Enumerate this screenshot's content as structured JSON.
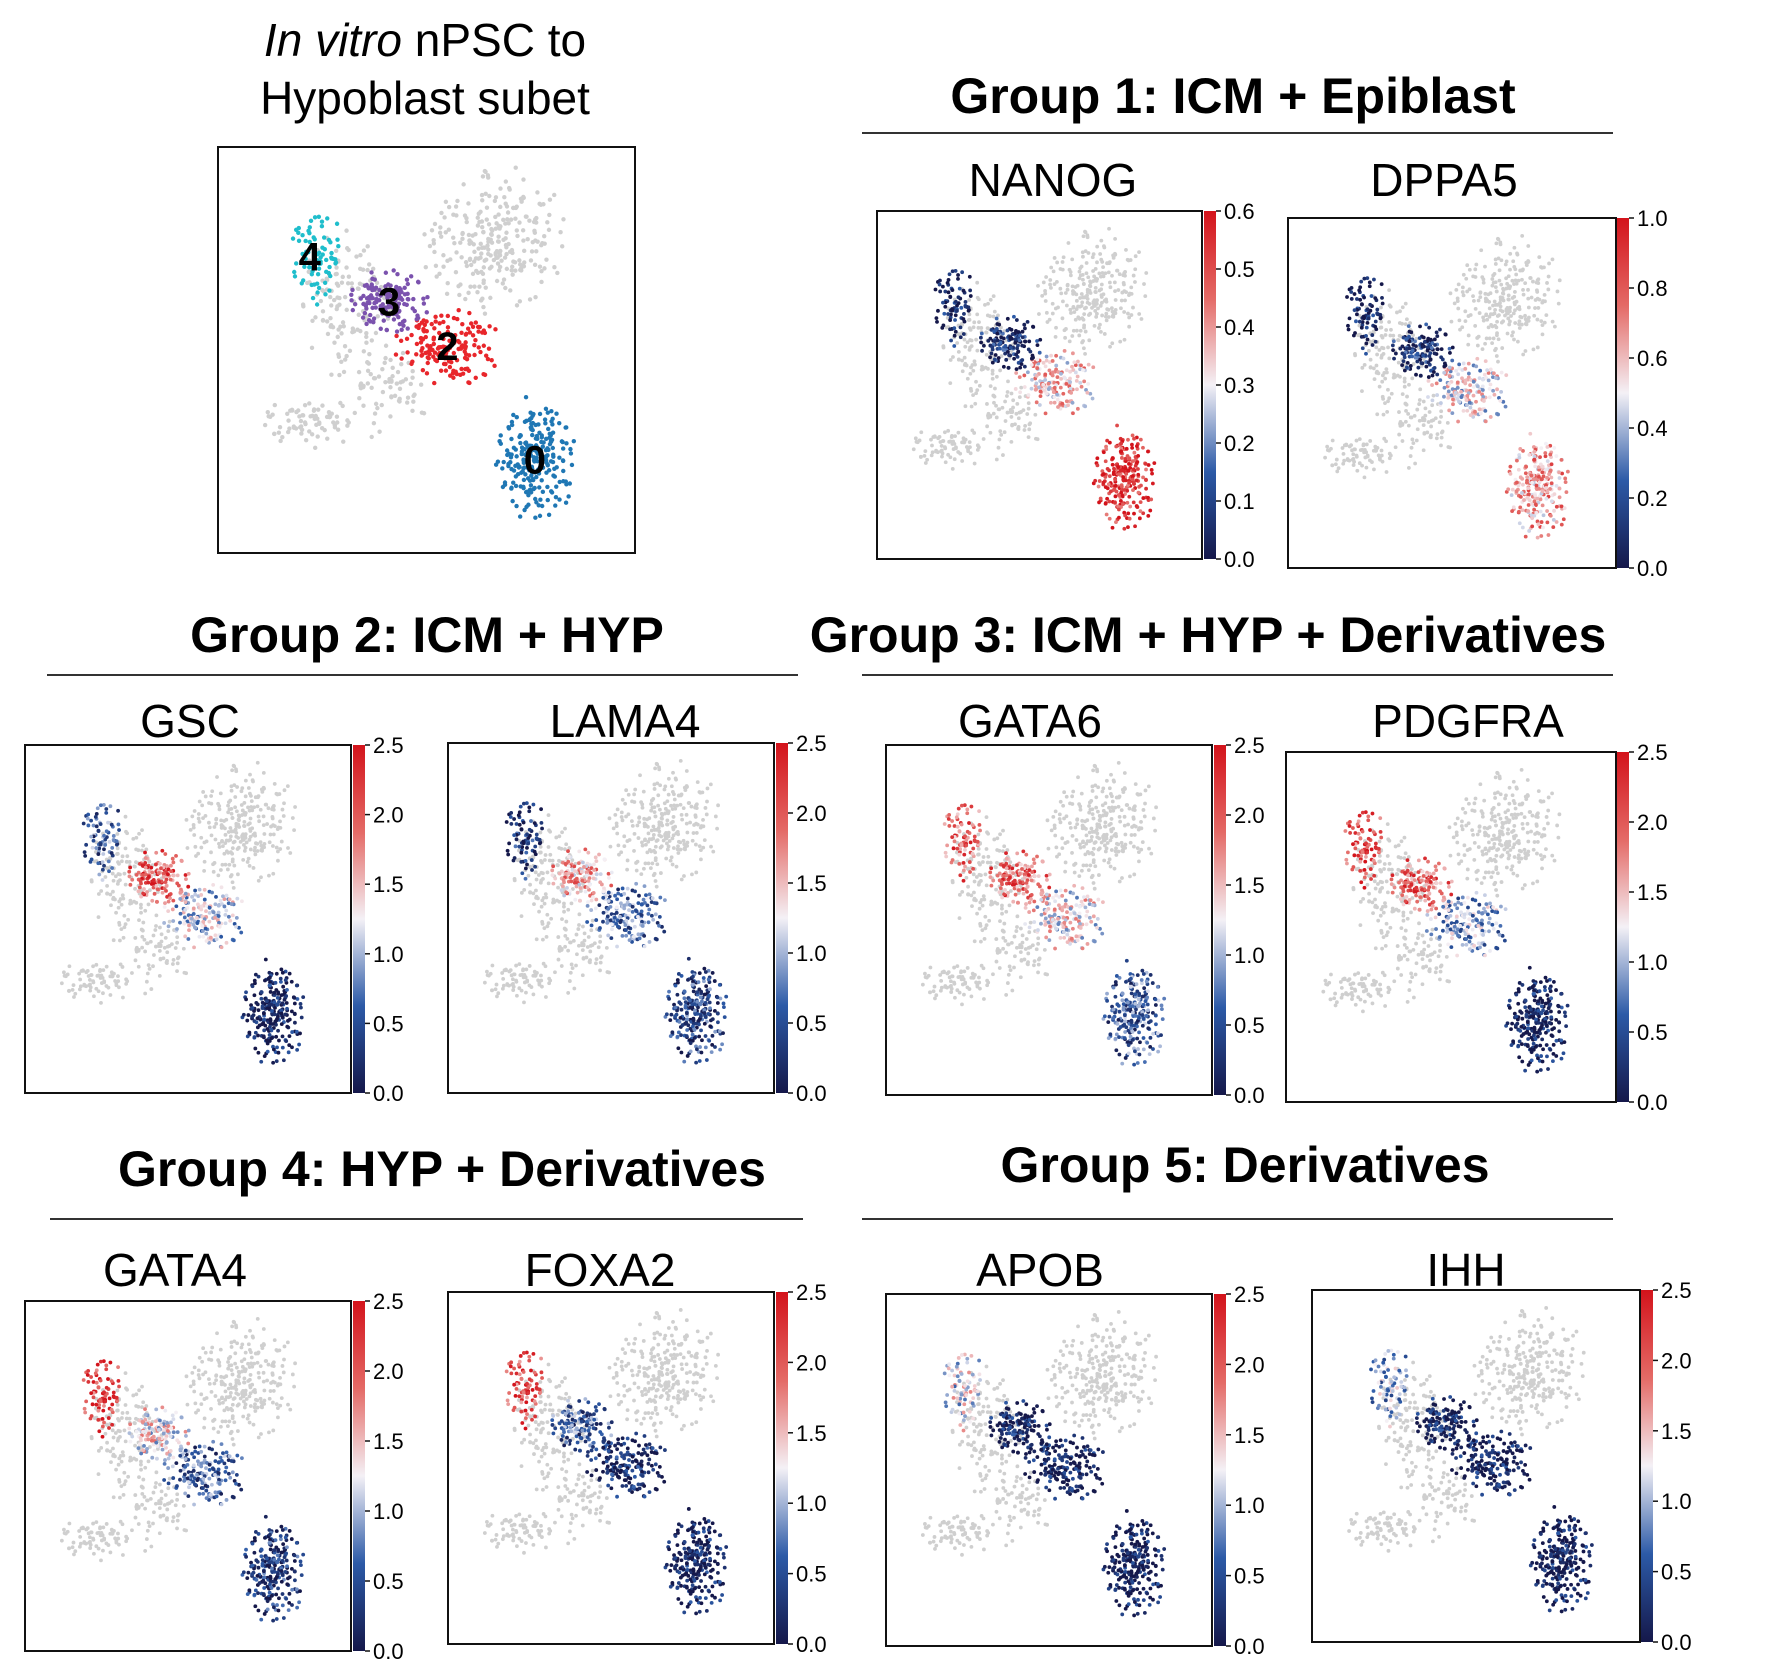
{
  "overview": {
    "title_italic": "In vitro",
    "title_rest": " nPSC to",
    "title_line2": "Hypoblast subet",
    "cluster_labels": [
      "4",
      "3",
      "2",
      "0"
    ],
    "cluster_colors": {
      "0": "#1f77b4",
      "2": "#e8262b",
      "3": "#7b52ae",
      "4": "#1fbecc",
      "background": "#cfcfcf"
    }
  },
  "groups": [
    {
      "title": "Group 1: ICM + Epiblast"
    },
    {
      "title": "Group 2: ICM + HYP"
    },
    {
      "title": "Group 3: ICM + HYP + Derivatives"
    },
    {
      "title": "Group 4:  HYP + Derivatives"
    },
    {
      "title": "Group 5: Derivatives"
    }
  ],
  "chart_data": [
    {
      "type": "scatter",
      "title": "In vitro nPSC to Hypoblast subet",
      "encoding": "cluster",
      "clusters": [
        "0",
        "2",
        "3",
        "4"
      ]
    },
    {
      "type": "scatter",
      "title": "NANOG",
      "group": "Group 1: ICM + Epiblast",
      "colorbar": {
        "min": 0.0,
        "max": 0.6,
        "ticks": [
          "0.0",
          "0.1",
          "0.2",
          "0.3",
          "0.4",
          "0.5",
          "0.6"
        ]
      },
      "expression_by_cluster": {
        "4": 0.02,
        "3": 0.05,
        "2": 0.35,
        "0": 0.55
      }
    },
    {
      "type": "scatter",
      "title": "DPPA5",
      "group": "Group 1: ICM + Epiblast",
      "colorbar": {
        "min": 0.0,
        "max": 1.0,
        "ticks": [
          "0.0",
          "0.2",
          "0.4",
          "0.6",
          "0.8",
          " 1.0"
        ]
      },
      "expression_by_cluster": {
        "4": 0.02,
        "3": 0.1,
        "2": 0.5,
        "0": 0.65
      }
    },
    {
      "type": "scatter",
      "title": "GSC",
      "group": "Group 2: ICM + HYP",
      "colorbar": {
        "min": 0.0,
        "max": 2.5,
        "ticks": [
          "0.0",
          "0.5",
          "1.0",
          "1.5",
          "2.0",
          "2.5"
        ]
      },
      "expression_by_cluster": {
        "4": 0.6,
        "3": 2.0,
        "2": 1.1,
        "0": 0.1
      }
    },
    {
      "type": "scatter",
      "title": "LAMA4",
      "group": "Group 2: ICM + HYP",
      "colorbar": {
        "min": 0.0,
        "max": 2.5,
        "ticks": [
          "0.0",
          "0.5",
          "1.0",
          "1.5",
          "2.0",
          "2.5"
        ]
      },
      "expression_by_cluster": {
        "4": 0.2,
        "3": 1.6,
        "2": 0.7,
        "0": 0.4
      }
    },
    {
      "type": "scatter",
      "title": "GATA6",
      "group": "Group 3: ICM + HYP + Derivatives",
      "colorbar": {
        "min": 0.0,
        "max": 2.5,
        "ticks": [
          "0.0",
          "0.5",
          "1.0",
          "1.5",
          "2.0",
          "2.5"
        ]
      },
      "expression_by_cluster": {
        "4": 1.9,
        "3": 1.9,
        "2": 1.3,
        "0": 0.6
      }
    },
    {
      "type": "scatter",
      "title": "PDGFRA",
      "group": "Group 3: ICM + HYP + Derivatives",
      "colorbar": {
        "min": 0.0,
        "max": 2.5,
        "ticks": [
          "0.0",
          "0.5",
          "1.0",
          "1.5",
          "2.0",
          "2.5"
        ]
      },
      "expression_by_cluster": {
        "4": 2.1,
        "3": 1.9,
        "2": 0.9,
        "0": 0.1
      }
    },
    {
      "type": "scatter",
      "title": "GATA4",
      "group": "Group 4:  HYP + Derivatives",
      "colorbar": {
        "min": 0.0,
        "max": 2.5,
        "ticks": [
          "0.0",
          "0.5",
          "1.0",
          "1.5",
          "2.0",
          "2.5"
        ]
      },
      "expression_by_cluster": {
        "4": 2.2,
        "3": 1.3,
        "2": 0.6,
        "0": 0.3
      }
    },
    {
      "type": "scatter",
      "title": "FOXA2",
      "group": "Group 4:  HYP + Derivatives",
      "colorbar": {
        "min": 0.0,
        "max": 2.5,
        "ticks": [
          "0.0",
          "0.5",
          "1.0",
          "1.5",
          "2.0",
          "2.5"
        ]
      },
      "expression_by_cluster": {
        "4": 2.1,
        "3": 0.6,
        "2": 0.15,
        "0": 0.1
      }
    },
    {
      "type": "scatter",
      "title": "APOB",
      "group": "Group 5: Derivatives",
      "colorbar": {
        "min": 0.0,
        "max": 2.5,
        "ticks": [
          "0.0",
          "0.5",
          "1.0",
          "1.5",
          "2.0",
          "2.5"
        ]
      },
      "expression_by_cluster": {
        "4": 1.2,
        "3": 0.1,
        "2": 0.05,
        "0": 0.05
      }
    },
    {
      "type": "scatter",
      "title": "IHH",
      "group": "Group 5: Derivatives",
      "colorbar": {
        "min": 0.0,
        "max": 2.5,
        "ticks": [
          "0.0",
          "0.5",
          "1.0",
          "1.5",
          "2.0",
          "2.5"
        ]
      },
      "expression_by_cluster": {
        "4": 0.9,
        "3": 0.1,
        "2": 0.05,
        "0": 0.05
      }
    }
  ]
}
